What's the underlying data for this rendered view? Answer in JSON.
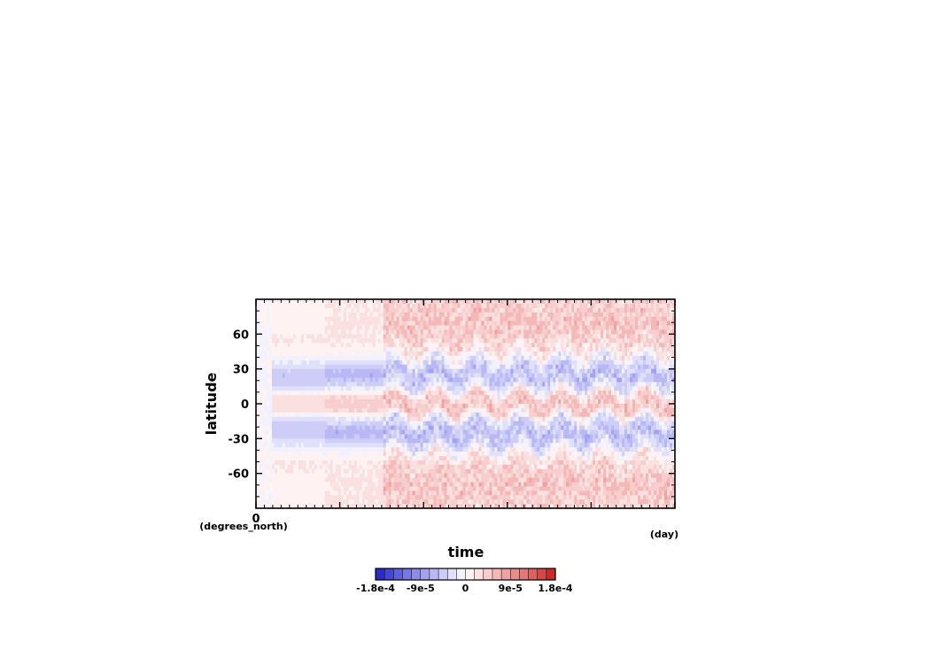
{
  "chart_data": {
    "type": "heatmap",
    "title": "",
    "xlabel": "time",
    "ylabel": "latitude",
    "x_units": "(day)",
    "y_units": "(degrees_north)",
    "xlim": [
      0,
      5
    ],
    "ylim": [
      -90,
      90
    ],
    "x_ticks": [
      0
    ],
    "y_ticks": [
      -60,
      -30,
      0,
      30,
      60
    ],
    "grid": false,
    "colorbar": {
      "position": "bottom",
      "colors": [
        "#2a2acc",
        "#4444d9",
        "#5e5ee0",
        "#7676e6",
        "#8c8ceb",
        "#a2a2f0",
        "#b8b8f4",
        "#cdcdf8",
        "#e0e0fb",
        "#f2f2fe",
        "#fef2f2",
        "#fbe0e0",
        "#f8cdcd",
        "#f4b8b8",
        "#f0a2a2",
        "#eb8c8c",
        "#e67676",
        "#e05e5e",
        "#d94444",
        "#cc2a2a"
      ],
      "tick_labels": [
        "-1.8e-4",
        "-9e-5",
        "0",
        "9e-5",
        "1.8e-4"
      ],
      "tick_values": [
        -0.00018,
        -9e-05,
        0,
        9e-05,
        0.00018
      ]
    },
    "latitudes": [
      -85,
      -75,
      -65,
      -55,
      -45,
      -35,
      -25,
      -15,
      -5,
      5,
      15,
      25,
      35,
      45,
      55,
      65,
      75,
      85
    ],
    "regimes": [
      {
        "time": [
          0.0,
          0.18
        ],
        "mean_values": [
          0,
          0,
          0,
          0,
          0,
          0,
          0,
          0,
          0,
          0,
          0,
          0,
          0,
          0,
          0,
          0,
          0,
          0
        ]
      },
      {
        "time": [
          0.18,
          0.82
        ],
        "mean_values": [
          1e-05,
          1e-05,
          1e-05,
          2e-05,
          1e-05,
          -2e-05,
          -5e-05,
          -4e-05,
          3e-05,
          3e-05,
          -4e-05,
          -5e-05,
          -2e-05,
          1e-05,
          2e-05,
          1e-05,
          1e-05,
          1e-05
        ]
      },
      {
        "time": [
          0.82,
          1.52
        ],
        "mean_values": [
          2e-05,
          2e-05,
          2e-05,
          2e-05,
          1e-05,
          -3e-05,
          -7e-05,
          -3e-05,
          4e-05,
          4e-05,
          -3e-05,
          -7e-05,
          -3e-05,
          1e-05,
          2e-05,
          2e-05,
          2e-05,
          2e-05
        ]
      },
      {
        "time": [
          1.52,
          5.0
        ],
        "mean_values": [
          4e-05,
          5e-05,
          5e-05,
          4e-05,
          2e-05,
          -3e-05,
          -6e-05,
          -3e-05,
          5e-05,
          5e-05,
          -3e-05,
          -6e-05,
          -3e-05,
          2e-05,
          4e-05,
          5e-05,
          5e-05,
          4e-05
        ],
        "oscillation_period": 0.5
      }
    ]
  }
}
